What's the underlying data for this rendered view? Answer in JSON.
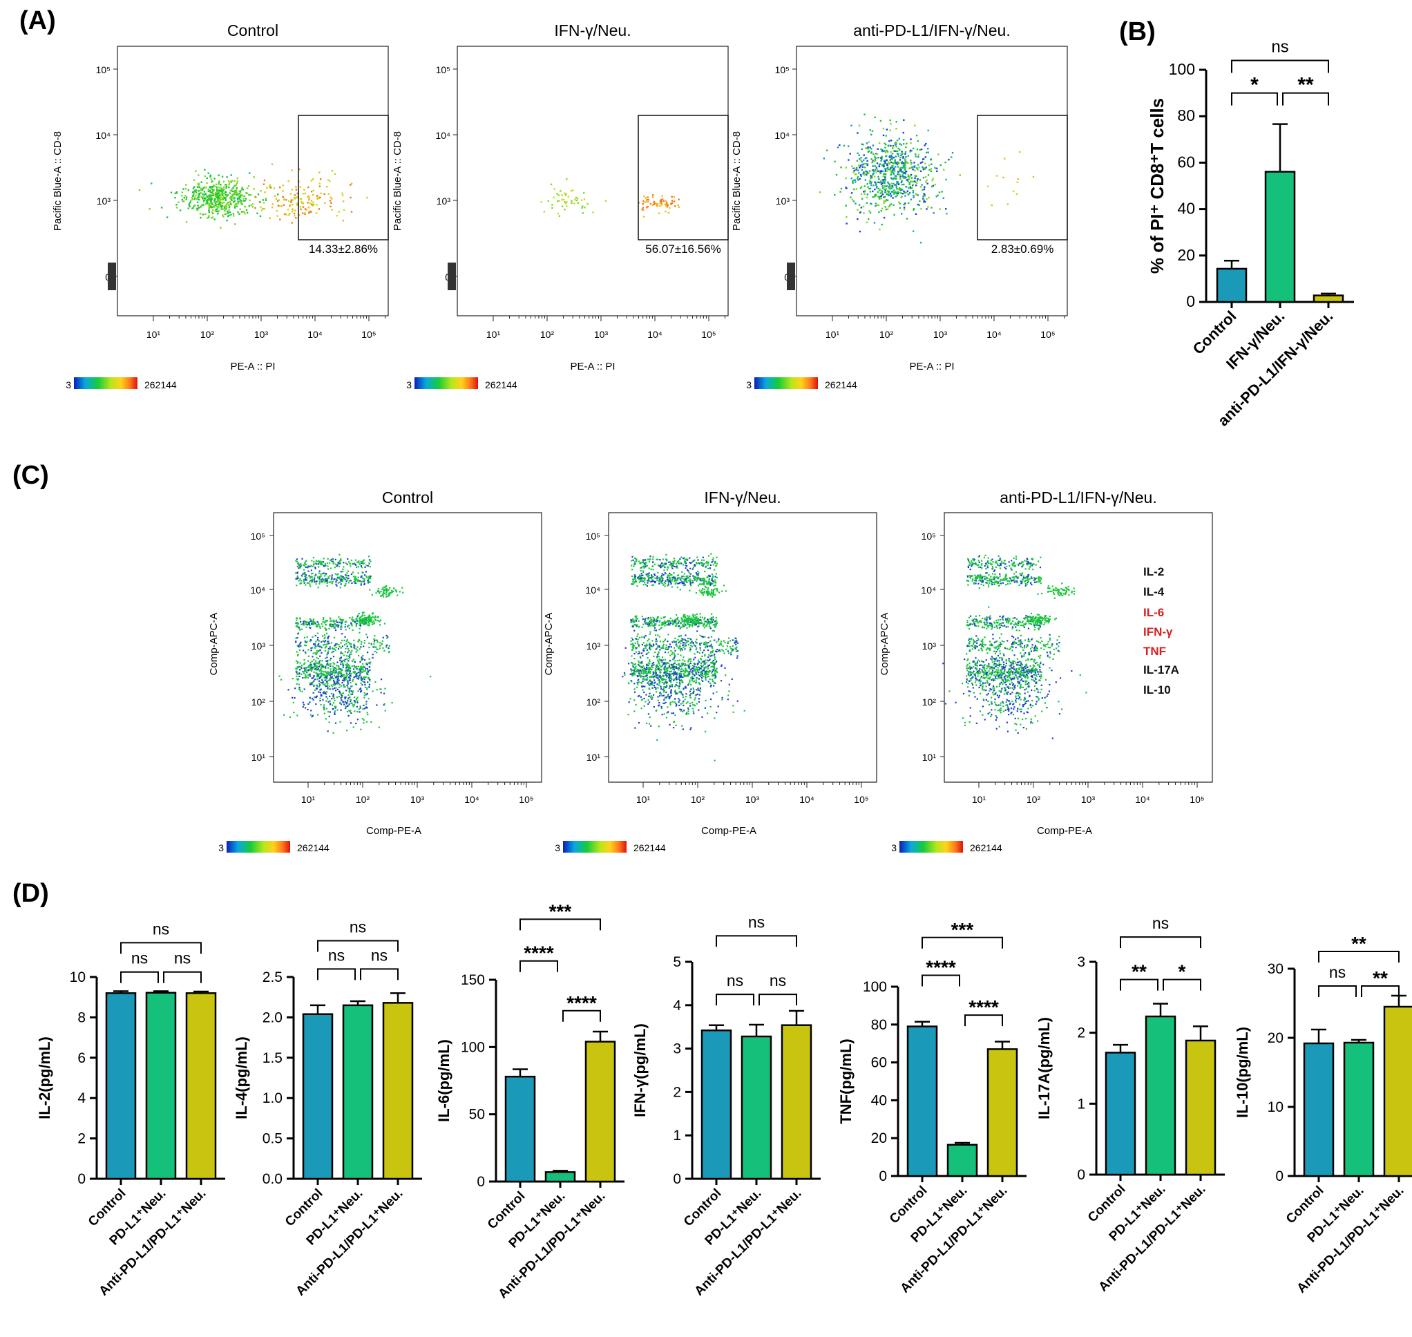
{
  "panel_labels": {
    "a": "(A)",
    "b": "(B)",
    "c": "(C)",
    "d": "(D)"
  },
  "colorbar": {
    "min": "3",
    "max": "262144",
    "colors": [
      "#0a1fb8",
      "#08a8e0",
      "#16cc3a",
      "#b6e61a",
      "#ffd21a",
      "#ff7a1a",
      "#e01010"
    ]
  },
  "flow_a": {
    "xlabel": "PE-A :: PI",
    "ylabel": "Pacific Blue-A :: CD-8",
    "x_ticks": [
      "10¹",
      "10²",
      "10³",
      "10⁴",
      "10⁵"
    ],
    "y_ticks": [
      "10⁵",
      "10⁴",
      "10³",
      "0"
    ],
    "plots": [
      {
        "title": "Control",
        "gate_value": "14.33±2.86%"
      },
      {
        "title": "IFN-γ/Neu.",
        "gate_value": "56.07±16.56%"
      },
      {
        "title": "anti-PD-L1/IFN-γ/Neu.",
        "gate_value": "2.83±0.69%"
      }
    ]
  },
  "flow_c": {
    "xlabel": "Comp-PE-A",
    "ylabel": "Comp-APC-A",
    "x_ticks": [
      "10¹",
      "10²",
      "10³",
      "10⁴",
      "10⁵"
    ],
    "y_ticks": [
      "10⁵",
      "10⁴",
      "10³",
      "10²",
      "10¹"
    ],
    "plots": [
      {
        "title": "Control"
      },
      {
        "title": "IFN-γ/Neu."
      },
      {
        "title": "anti-PD-L1/IFN-γ/Neu."
      }
    ],
    "legend": [
      {
        "text": "IL-2",
        "color": "#111111"
      },
      {
        "text": "IL-4",
        "color": "#111111"
      },
      {
        "text": "IL-6",
        "color": "#d42020"
      },
      {
        "text": "IFN-γ",
        "color": "#d42020"
      },
      {
        "text": "TNF",
        "color": "#d42020"
      },
      {
        "text": "IL-17A",
        "color": "#111111"
      },
      {
        "text": "IL-10",
        "color": "#111111"
      }
    ]
  },
  "colors": {
    "control": "#1a9ab8",
    "middle": "#14c07a",
    "third": "#c8c410",
    "axis": "#000000"
  },
  "chart_data": [
    {
      "type": "bar",
      "panel": "B",
      "title": "",
      "ylabel": "% of PI⁺ CD8⁺T cells",
      "categories": [
        "Control",
        "IFN-γ/Neu.",
        "anti-PD-L1/IFN-γ/Neu."
      ],
      "values": [
        14.3,
        56.1,
        2.8
      ],
      "errors": [
        3.5,
        20.5,
        0.8
      ],
      "ylim": [
        0,
        100
      ],
      "yticks": [
        0,
        20,
        40,
        60,
        80,
        100
      ],
      "significance": [
        {
          "from": 0,
          "to": 1,
          "label": "*",
          "level": 90
        },
        {
          "from": 1,
          "to": 2,
          "label": "**",
          "level": 90
        },
        {
          "from": 0,
          "to": 2,
          "label": "ns",
          "level": 104
        }
      ]
    },
    {
      "type": "bar",
      "panel": "D",
      "ylabel": "IL-2(pg/mL)",
      "categories": [
        "Control",
        "PD-L1⁺Neu.",
        "Anti-PD-L1/PD-L1⁺Neu."
      ],
      "values": [
        9.2,
        9.22,
        9.2
      ],
      "errors": [
        0.1,
        0.08,
        0.08
      ],
      "ylim": [
        0,
        10
      ],
      "yticks": [
        0,
        2,
        4,
        6,
        8,
        10
      ],
      "significance": [
        {
          "from": 0,
          "to": 1,
          "label": "ns",
          "level": 10.25
        },
        {
          "from": 1,
          "to": 2,
          "label": "ns",
          "level": 10.25
        },
        {
          "from": 0,
          "to": 2,
          "label": "ns",
          "level": 11.7
        }
      ]
    },
    {
      "type": "bar",
      "panel": "D",
      "ylabel": "IL-4(pg/mL)",
      "categories": [
        "Control",
        "PD-L1⁺Neu.",
        "Anti-PD-L1/PD-L1⁺Neu."
      ],
      "values": [
        2.04,
        2.15,
        2.18
      ],
      "errors": [
        0.11,
        0.05,
        0.12
      ],
      "ylim": [
        0,
        2.5
      ],
      "yticks": [
        "0.0",
        "0.5",
        "1.0",
        "1.5",
        "2.0",
        "2.5"
      ],
      "significance": [
        {
          "from": 0,
          "to": 1,
          "label": "ns",
          "level": 2.6
        },
        {
          "from": 1,
          "to": 2,
          "label": "ns",
          "level": 2.6
        },
        {
          "from": 0,
          "to": 2,
          "label": "ns",
          "level": 2.95
        }
      ]
    },
    {
      "type": "bar",
      "panel": "D",
      "ylabel": "IL-6(pg/mL)",
      "categories": [
        "Control",
        "PD-L1⁺Neu.",
        "Anti-PD-L1/PD-L1⁺Neu."
      ],
      "values": [
        78,
        7,
        104
      ],
      "errors": [
        5.5,
        1,
        7.5
      ],
      "ylim": [
        0,
        150
      ],
      "yticks": [
        0,
        50,
        100,
        150
      ],
      "significance": [
        {
          "from": 0,
          "to": 1,
          "label": "****",
          "level": 164
        },
        {
          "from": 1,
          "to": 2,
          "label": "****",
          "level": 127
        },
        {
          "from": 0,
          "to": 2,
          "label": "***",
          "level": 195
        }
      ]
    },
    {
      "type": "bar",
      "panel": "D",
      "ylabel": "IFN-γ(pg/mL)",
      "categories": [
        "Control",
        "PD-L1⁺Neu.",
        "Anti-PD-L1/PD-L1⁺Neu."
      ],
      "values": [
        3.42,
        3.28,
        3.54
      ],
      "errors": [
        0.12,
        0.27,
        0.33
      ],
      "ylim": [
        0,
        5
      ],
      "yticks": [
        0,
        1,
        2,
        3,
        4,
        5
      ],
      "significance": [
        {
          "from": 0,
          "to": 1,
          "label": "ns",
          "level": 4.25
        },
        {
          "from": 1,
          "to": 2,
          "label": "ns",
          "level": 4.25
        },
        {
          "from": 0,
          "to": 2,
          "label": "ns",
          "level": 5.6
        }
      ]
    },
    {
      "type": "bar",
      "panel": "D",
      "ylabel": "TNF(pg/mL)",
      "categories": [
        "Control",
        "PD-L1⁺Neu.",
        "Anti-PD-L1/PD-L1⁺Neu."
      ],
      "values": [
        79,
        16.5,
        67
      ],
      "errors": [
        2.5,
        1,
        4
      ],
      "ylim": [
        0,
        100
      ],
      "yticks": [
        0,
        20,
        40,
        60,
        80,
        100
      ],
      "significance": [
        {
          "from": 0,
          "to": 1,
          "label": "****",
          "level": 106
        },
        {
          "from": 1,
          "to": 2,
          "label": "****",
          "level": 85
        },
        {
          "from": 0,
          "to": 2,
          "label": "***",
          "level": 126
        }
      ]
    },
    {
      "type": "bar",
      "panel": "D",
      "ylabel": "IL-17A(pg/mL)",
      "categories": [
        "Control",
        "PD-L1⁺Neu.",
        "Anti-PD-L1/PD-L1⁺Neu."
      ],
      "values": [
        1.72,
        2.23,
        1.89
      ],
      "errors": [
        0.11,
        0.18,
        0.2
      ],
      "ylim": [
        0,
        3
      ],
      "yticks": [
        0,
        1,
        2,
        3
      ],
      "significance": [
        {
          "from": 0,
          "to": 1,
          "label": "**",
          "level": 2.75
        },
        {
          "from": 1,
          "to": 2,
          "label": "*",
          "level": 2.75
        },
        {
          "from": 0,
          "to": 2,
          "label": "ns",
          "level": 3.35
        }
      ]
    },
    {
      "type": "bar",
      "panel": "D",
      "ylabel": "IL-10(pg/mL)",
      "categories": [
        "Control",
        "PD-L1⁺Neu.",
        "Anti-PD-L1/PD-L1⁺Neu."
      ],
      "values": [
        19.2,
        19.3,
        24.5
      ],
      "errors": [
        2,
        0.4,
        1.6
      ],
      "ylim": [
        0,
        30
      ],
      "yticks": [
        0,
        10,
        20,
        30
      ],
      "significance": [
        {
          "from": 0,
          "to": 1,
          "label": "ns",
          "level": 27.5
        },
        {
          "from": 1,
          "to": 2,
          "label": "**",
          "level": 27.5
        },
        {
          "from": 0,
          "to": 2,
          "label": "**",
          "level": 32.5
        }
      ]
    }
  ]
}
